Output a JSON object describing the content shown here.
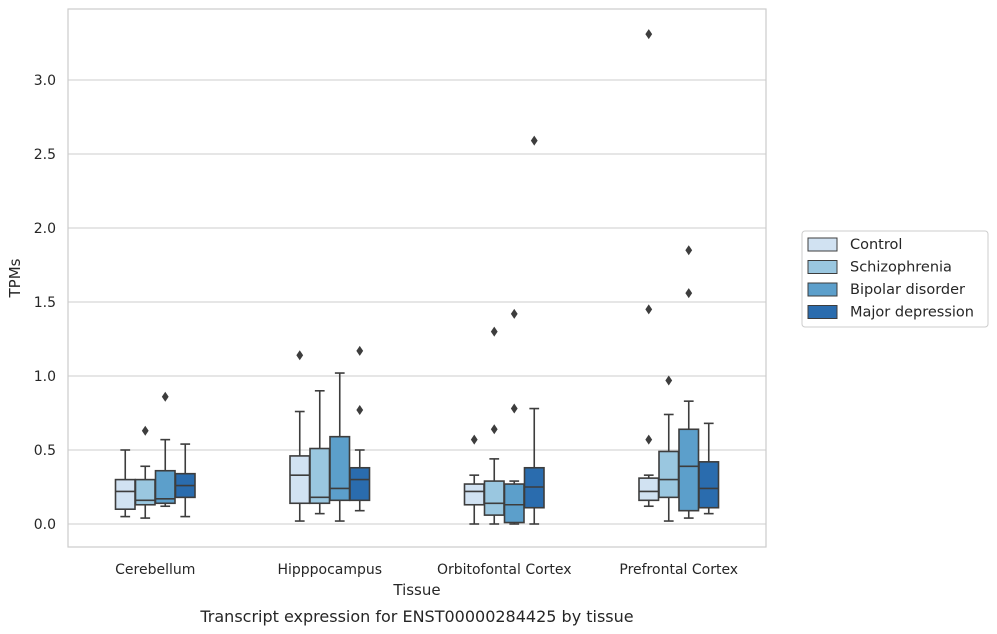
{
  "chart_data": {
    "type": "box",
    "title": "",
    "caption": "Transcript expression for ENST00000284425 by tissue",
    "xlabel": "Tissue",
    "ylabel": "TPMs",
    "ylim": [
      -0.16,
      3.45
    ],
    "yticks": [
      0.0,
      0.5,
      1.0,
      1.5,
      2.0,
      2.5,
      3.0
    ],
    "ytick_labels": [
      "0.0",
      "0.5",
      "1.0",
      "1.5",
      "2.0",
      "2.5",
      "3.0"
    ],
    "grid": "horizontal",
    "legend_position": "right",
    "categories": [
      "Cerebellum",
      "Hipppocampus",
      "Orbitofontal Cortex",
      "Prefrontal Cortex"
    ],
    "series": [
      {
        "name": "Control",
        "color": "#d1e2f2",
        "boxes": [
          {
            "whislo": 0.05,
            "q1": 0.1,
            "med": 0.22,
            "q3": 0.3,
            "whishi": 0.5,
            "fliers": []
          },
          {
            "whislo": 0.02,
            "q1": 0.14,
            "med": 0.33,
            "q3": 0.46,
            "whishi": 0.76,
            "fliers": [
              1.14
            ]
          },
          {
            "whislo": 0.0,
            "q1": 0.13,
            "med": 0.22,
            "q3": 0.27,
            "whishi": 0.33,
            "fliers": [
              0.57
            ]
          },
          {
            "whislo": 0.12,
            "q1": 0.16,
            "med": 0.22,
            "q3": 0.31,
            "whishi": 0.33,
            "fliers": [
              0.57,
              1.45,
              3.31
            ]
          }
        ]
      },
      {
        "name": "Schizophrenia",
        "color": "#9ac7e0",
        "boxes": [
          {
            "whislo": 0.04,
            "q1": 0.13,
            "med": 0.16,
            "q3": 0.3,
            "whishi": 0.39,
            "fliers": [
              0.63
            ]
          },
          {
            "whislo": 0.07,
            "q1": 0.14,
            "med": 0.18,
            "q3": 0.51,
            "whishi": 0.9,
            "fliers": []
          },
          {
            "whislo": 0.0,
            "q1": 0.06,
            "med": 0.14,
            "q3": 0.29,
            "whishi": 0.44,
            "fliers": [
              0.64,
              1.3
            ]
          },
          {
            "whislo": 0.02,
            "q1": 0.18,
            "med": 0.3,
            "q3": 0.49,
            "whishi": 0.74,
            "fliers": [
              0.97
            ]
          }
        ]
      },
      {
        "name": "Bipolar disorder",
        "color": "#5c9fcb",
        "boxes": [
          {
            "whislo": 0.12,
            "q1": 0.14,
            "med": 0.17,
            "q3": 0.36,
            "whishi": 0.57,
            "fliers": [
              0.86
            ]
          },
          {
            "whislo": 0.02,
            "q1": 0.16,
            "med": 0.24,
            "q3": 0.59,
            "whishi": 1.02,
            "fliers": []
          },
          {
            "whislo": 0.0,
            "q1": 0.01,
            "med": 0.13,
            "q3": 0.27,
            "whishi": 0.29,
            "fliers": [
              0.78,
              1.42
            ]
          },
          {
            "whislo": 0.04,
            "q1": 0.09,
            "med": 0.39,
            "q3": 0.64,
            "whishi": 0.83,
            "fliers": [
              1.56,
              1.85
            ]
          }
        ]
      },
      {
        "name": "Major depression",
        "color": "#2a6cae",
        "boxes": [
          {
            "whislo": 0.05,
            "q1": 0.18,
            "med": 0.26,
            "q3": 0.34,
            "whishi": 0.54,
            "fliers": []
          },
          {
            "whislo": 0.09,
            "q1": 0.16,
            "med": 0.3,
            "q3": 0.38,
            "whishi": 0.5,
            "fliers": [
              0.77,
              1.17
            ]
          },
          {
            "whislo": 0.0,
            "q1": 0.11,
            "med": 0.25,
            "q3": 0.38,
            "whishi": 0.78,
            "fliers": [
              2.59
            ]
          },
          {
            "whislo": 0.07,
            "q1": 0.11,
            "med": 0.24,
            "q3": 0.42,
            "whishi": 0.68,
            "fliers": []
          }
        ]
      }
    ]
  }
}
